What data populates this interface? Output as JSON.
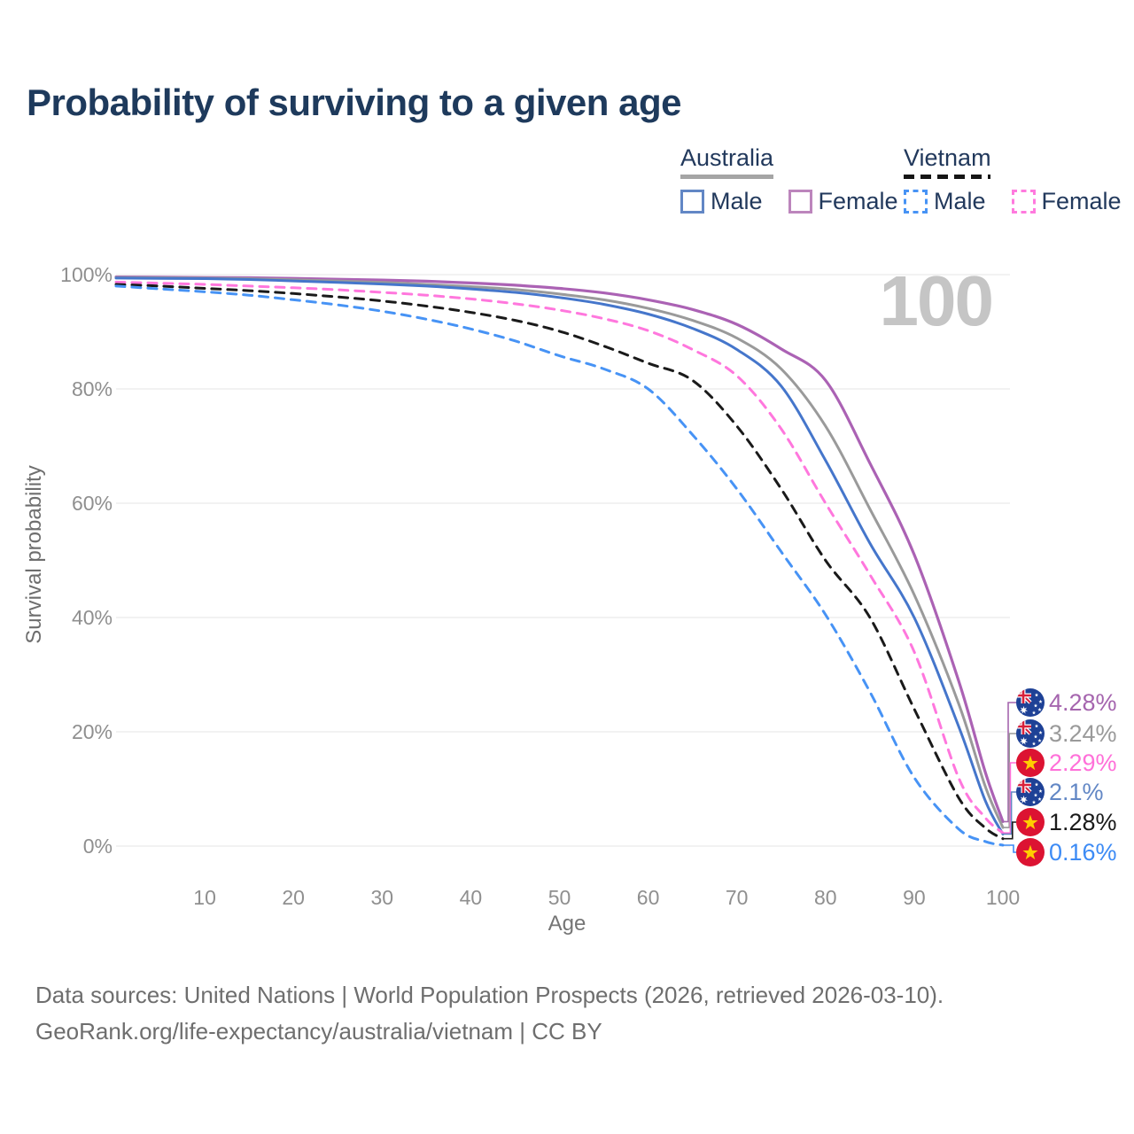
{
  "title": "Probability of surviving to a given age",
  "age_counter": "100",
  "legend": {
    "australia": {
      "label": "Australia",
      "male_label": "Male",
      "female_label": "Female",
      "underline_color": "#a5a5a5",
      "male_color": "#6287c5",
      "female_color": "#bc85bc",
      "line_style": "solid"
    },
    "vietnam": {
      "label": "Vietnam",
      "male_label": "Male",
      "female_label": "Female",
      "underline_color": "#151515",
      "male_color": "#4793f5",
      "female_color": "#ff7ade",
      "line_style": "dashed"
    }
  },
  "chart_data": {
    "type": "line",
    "title": "Probability of surviving to a given age",
    "xlabel": "Age",
    "ylabel": "Survival probability",
    "xlim": [
      0,
      100
    ],
    "ylim": [
      0,
      100
    ],
    "grid": "horizontal",
    "legend_position": "top-right",
    "x_tick_values": [
      10,
      20,
      30,
      40,
      50,
      60,
      70,
      80,
      90,
      100
    ],
    "x_tick_labels": [
      "10",
      "20",
      "30",
      "40",
      "50",
      "60",
      "70",
      "80",
      "90",
      "100"
    ],
    "y_tick_values": [
      0,
      20,
      40,
      60,
      80,
      100
    ],
    "y_tick_labels": [
      "0%",
      "20%",
      "40%",
      "60%",
      "80%",
      "100%"
    ],
    "x": [
      0,
      5,
      10,
      15,
      20,
      25,
      30,
      35,
      40,
      45,
      50,
      55,
      60,
      65,
      70,
      75,
      80,
      85,
      90,
      95,
      98,
      100
    ],
    "series": [
      {
        "name": "Australia Female",
        "country": "Australia",
        "sex": "Female",
        "color": "#ab62b4",
        "dashed": false,
        "width": 3.2,
        "values": [
          99.6,
          99.55,
          99.5,
          99.45,
          99.35,
          99.2,
          99.05,
          98.85,
          98.55,
          98.15,
          97.6,
          96.8,
          95.6,
          93.9,
          91.3,
          87.0,
          81.5,
          67.0,
          51.0,
          29.0,
          13.0,
          4.28
        ]
      },
      {
        "name": "Australia Both sexes",
        "country": "Australia",
        "sex": "Both",
        "color": "#9a9a9a",
        "dashed": false,
        "width": 3,
        "values": [
          99.5,
          99.45,
          99.4,
          99.3,
          99.1,
          98.9,
          98.65,
          98.3,
          97.9,
          97.4,
          96.6,
          95.6,
          94.1,
          92.0,
          88.9,
          83.5,
          73.5,
          59.0,
          44.0,
          25.0,
          10.5,
          3.24
        ]
      },
      {
        "name": "Australia Male",
        "country": "Australia",
        "sex": "Male",
        "color": "#4576cb",
        "dashed": false,
        "width": 3,
        "values": [
          99.4,
          99.35,
          99.3,
          99.15,
          98.9,
          98.65,
          98.35,
          98.0,
          97.5,
          96.9,
          96.0,
          94.8,
          93.1,
          90.6,
          86.9,
          80.5,
          67.5,
          53.0,
          40.0,
          21.0,
          8.0,
          2.1
        ]
      },
      {
        "name": "Vietnam Female",
        "country": "Vietnam",
        "sex": "Female",
        "color": "#ff77dd",
        "dashed": true,
        "width": 3,
        "values": [
          98.7,
          98.5,
          98.3,
          98.0,
          97.7,
          97.35,
          96.9,
          96.4,
          95.75,
          94.9,
          93.8,
          92.3,
          90.2,
          86.9,
          82.3,
          73.0,
          60.0,
          47.5,
          34.0,
          12.0,
          5.0,
          2.29
        ]
      },
      {
        "name": "Vietnam Both sexes",
        "country": "Vietnam",
        "sex": "Both",
        "color": "#1a1a1a",
        "dashed": true,
        "width": 3,
        "values": [
          98.3,
          98.0,
          97.6,
          97.2,
          96.7,
          96.1,
          95.4,
          94.5,
          93.4,
          92.0,
          90.1,
          87.5,
          84.5,
          81.5,
          73.5,
          62.5,
          50.0,
          40.0,
          24.0,
          8.5,
          3.2,
          1.28
        ]
      },
      {
        "name": "Vietnam Male",
        "country": "Vietnam",
        "sex": "Male",
        "color": "#4793f5",
        "dashed": true,
        "width": 3,
        "values": [
          98.0,
          97.5,
          97.0,
          96.4,
          95.6,
          94.7,
          93.6,
          92.2,
          90.5,
          88.4,
          85.8,
          83.5,
          80.0,
          72.0,
          62.5,
          51.5,
          40.5,
          27.0,
          12.0,
          3.0,
          0.8,
          0.16
        ]
      }
    ],
    "end_labels": [
      {
        "series_index": 0,
        "flag": "australia",
        "value": "4.28%",
        "color": "#a565ae"
      },
      {
        "series_index": 1,
        "flag": "australia",
        "value": "3.24%",
        "color": "#9a9a9a"
      },
      {
        "series_index": 3,
        "flag": "vietnam",
        "value": "2.29%",
        "color": "#ff70d9"
      },
      {
        "series_index": 2,
        "flag": "australia",
        "value": "2.1%",
        "color": "#6287c5"
      },
      {
        "series_index": 4,
        "flag": "vietnam",
        "value": "1.28%",
        "color": "#1a1a1a"
      },
      {
        "series_index": 5,
        "flag": "vietnam",
        "value": "0.16%",
        "color": "#3d8bf5"
      }
    ]
  },
  "footer": {
    "line1": "Data sources: United Nations | World Population Prospects (2026, retrieved 2026-03-10).",
    "line2": "GeoRank.org/life-expectancy/australia/vietnam | CC BY"
  }
}
